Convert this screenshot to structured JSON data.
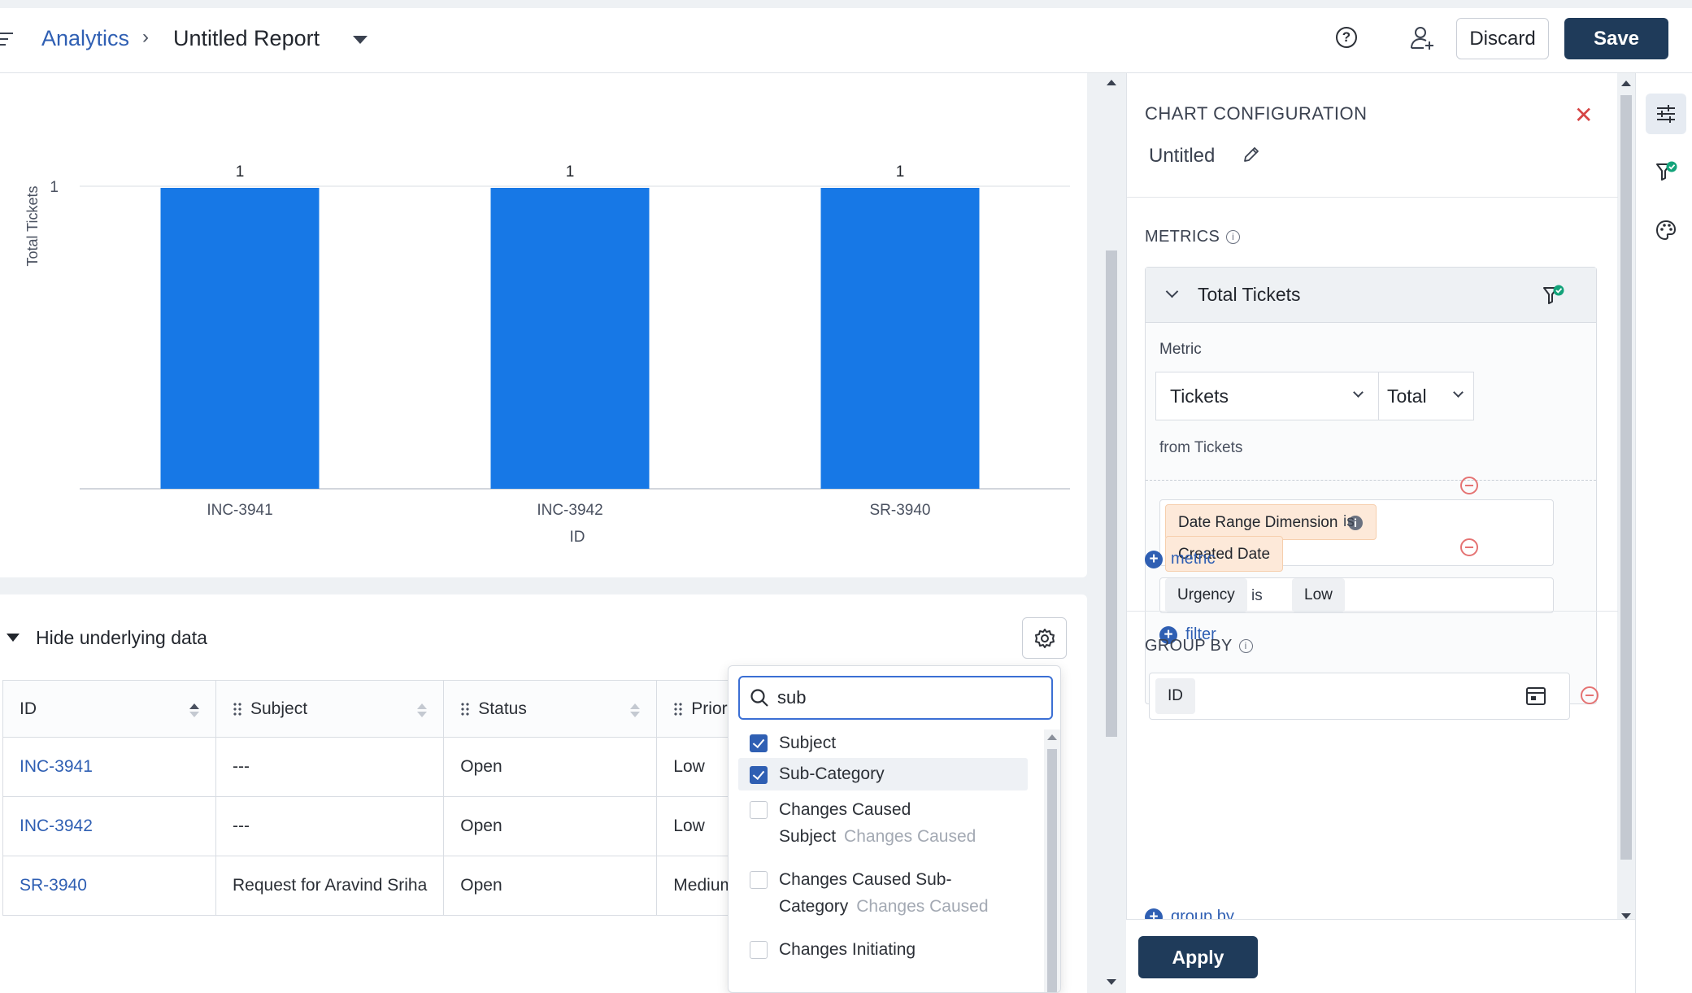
{
  "header": {
    "breadcrumb_link": "Analytics",
    "breadcrumb_sep": "›",
    "report_title": "Untitled Report",
    "discard_label": "Discard",
    "save_label": "Save"
  },
  "chart_data": {
    "type": "bar",
    "categories": [
      "INC-3941",
      "INC-3942",
      "SR-3940"
    ],
    "series": [
      {
        "values": [
          1,
          1,
          1
        ]
      }
    ],
    "data_labels": [
      "1",
      "1",
      "1"
    ],
    "xlabel": "ID",
    "ylabel": "Total Tickets",
    "y_ticks": [
      "1"
    ],
    "ylim": [
      0,
      1
    ],
    "bar_color": "#1778e6",
    "grid": true
  },
  "data_section": {
    "toggle_label": "Hide underlying data",
    "columns": [
      "ID",
      "Subject",
      "Status",
      "Priorit"
    ],
    "rows": [
      {
        "id": "INC-3941",
        "subject": "---",
        "status": "Open",
        "priority": "Low"
      },
      {
        "id": "INC-3942",
        "subject": "---",
        "status": "Open",
        "priority": "Low"
      },
      {
        "id": "SR-3940",
        "subject": "Request for Aravind Sriha",
        "status": "Open",
        "priority": "Medium"
      }
    ]
  },
  "column_picker": {
    "search_value": "sub",
    "items": [
      {
        "label": "Subject",
        "checked": true
      },
      {
        "label": "Sub-Category",
        "checked": true
      },
      {
        "label_line1": "Changes Caused",
        "label_line2": "Subject",
        "hint": "Changes Caused",
        "checked": false
      },
      {
        "label_line1": "Changes Caused Sub-",
        "label_line2": "Category",
        "hint": "Changes Caused",
        "checked": false
      },
      {
        "label": "Changes Initiating",
        "checked": false
      }
    ]
  },
  "config": {
    "title": "CHART CONFIGURATION",
    "close_glyph": "✕",
    "chart_name": "Untitled",
    "metrics_label": "METRICS",
    "metric_name": "Total Tickets",
    "metric_field_label": "Metric",
    "metric_select": "Tickets",
    "aggregation_select": "Total",
    "from_text": "from Tickets",
    "filters": [
      {
        "field": "Date Range Dimension",
        "op": "is",
        "value": "Created Date"
      },
      {
        "field": "Urgency",
        "op": "is",
        "value": "Low"
      }
    ],
    "add_filter_label": "filter",
    "add_metric_label": "metric",
    "group_by_label": "GROUP BY",
    "group_by_value": "ID",
    "add_group_by_label": "group by",
    "apply_label": "Apply"
  },
  "colors": {
    "accent": "#1f3b5a",
    "link": "#2f5fb3",
    "bar": "#1778e6",
    "chip_orange": "#fde9d9"
  }
}
